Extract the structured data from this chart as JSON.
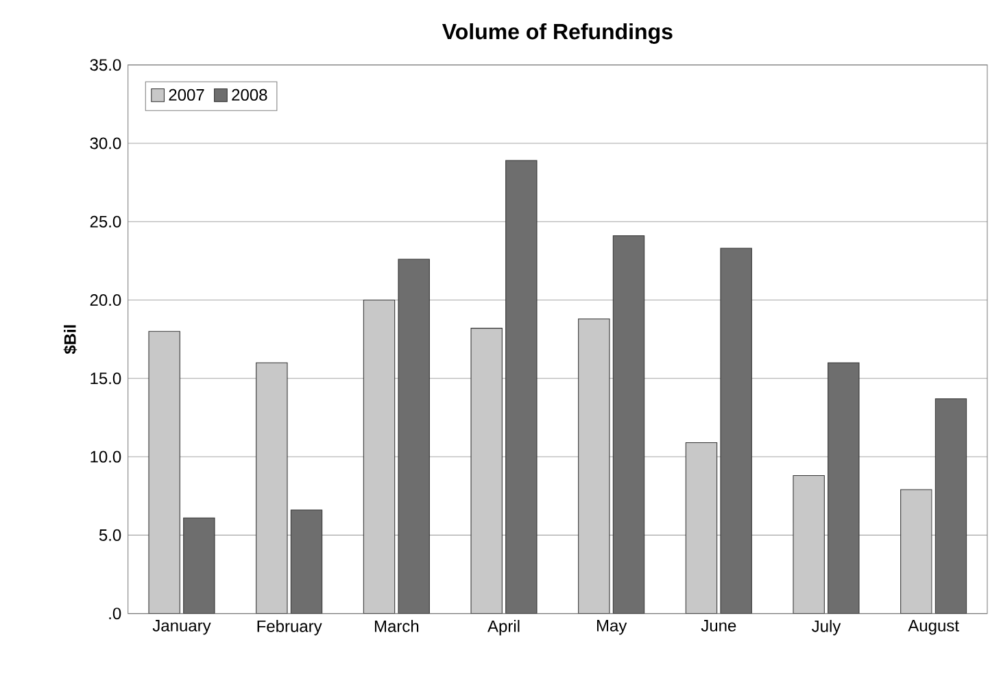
{
  "chart_data": {
    "type": "bar",
    "title": "Volume of Refundings",
    "ylabel": "$Bil",
    "categories": [
      "January",
      "February",
      "March",
      "April",
      "May",
      "June",
      "July",
      "August"
    ],
    "series": [
      {
        "name": "2007",
        "color": "#c8c8c8",
        "values": [
          18.0,
          16.0,
          20.0,
          18.2,
          18.8,
          10.9,
          8.8,
          7.9
        ]
      },
      {
        "name": "2008",
        "color": "#6e6e6e",
        "values": [
          6.1,
          6.6,
          22.6,
          28.9,
          24.1,
          23.3,
          16.0,
          13.7
        ]
      }
    ],
    "ylim": [
      0,
      35
    ],
    "yticks": [
      {
        "value": 0,
        "label": ".0"
      },
      {
        "value": 5,
        "label": "5.0"
      },
      {
        "value": 10,
        "label": "10.0"
      },
      {
        "value": 15,
        "label": "15.0"
      },
      {
        "value": 20,
        "label": "20.0"
      },
      {
        "value": 25,
        "label": "25.0"
      },
      {
        "value": 30,
        "label": "30.0"
      },
      {
        "value": 35,
        "label": "35.0"
      }
    ],
    "grid": "y",
    "legend": "top left"
  }
}
